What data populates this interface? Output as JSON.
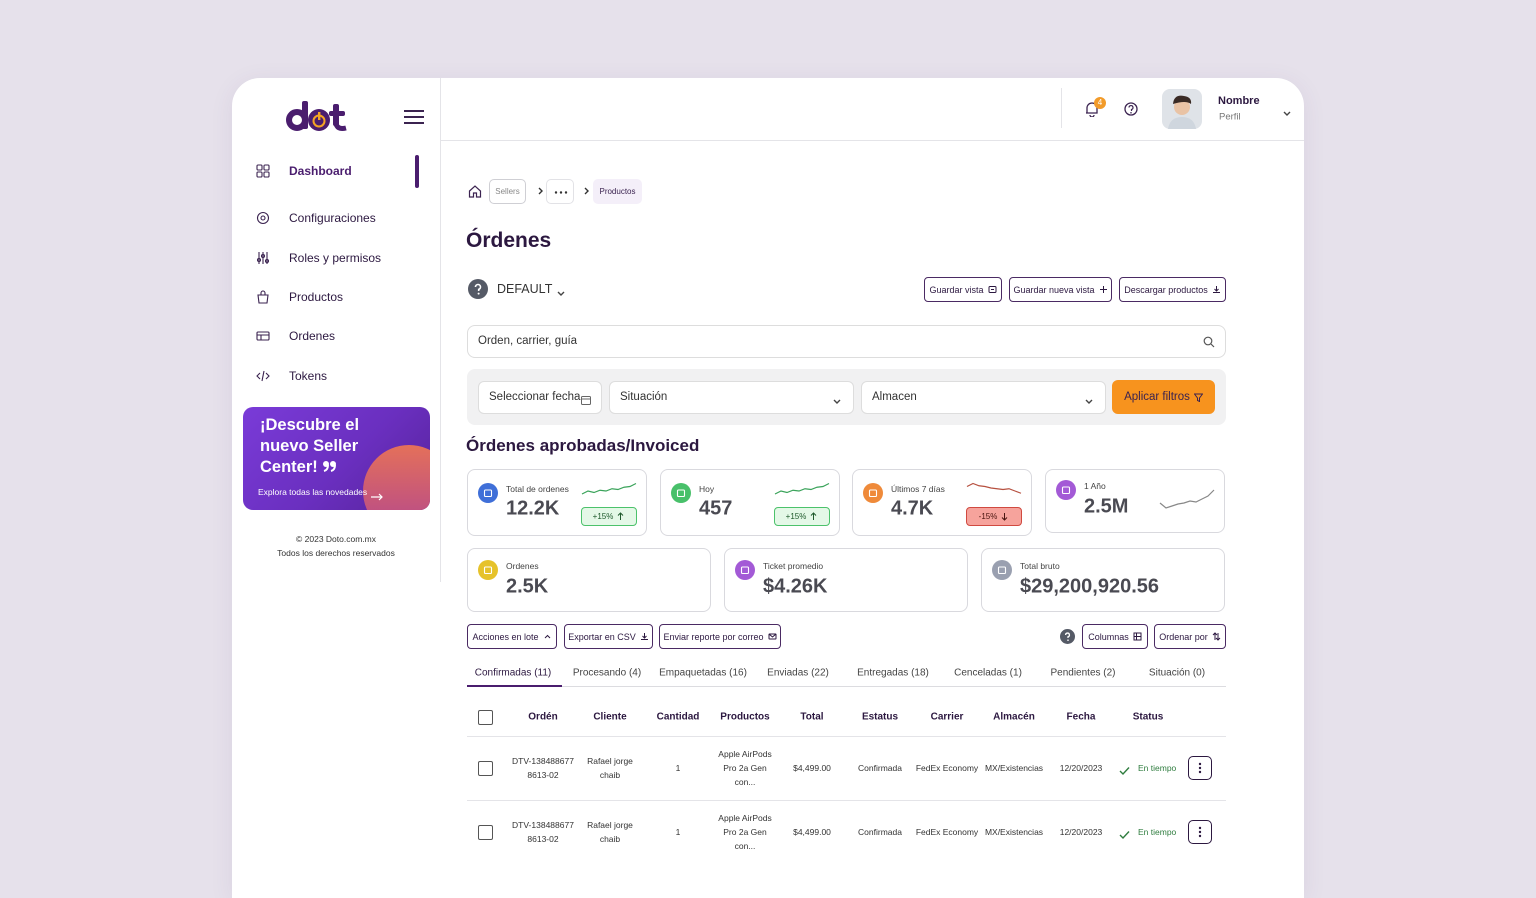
{
  "sidebar": {
    "nav": [
      "Dashboard",
      "Configuraciones",
      "Roles y permisos",
      "Productos",
      "Ordenes",
      "Tokens"
    ],
    "promo": {
      "title": "¡Descubre el nuevo Seller Center!",
      "link": "Explora todas las novedades"
    },
    "footer": [
      "© 2023 Doto.com.mx",
      "Todos los derechos reservados"
    ]
  },
  "header": {
    "notifications": 4,
    "user": {
      "name": "Nombre",
      "role": "Perfil"
    }
  },
  "breadcrumb": [
    "Sellers",
    "Productos"
  ],
  "page": {
    "title": "Órdenes",
    "view": "DEFAULT",
    "view_actions": [
      "Guardar vista",
      "Guardar nueva vista",
      "Descargar productos"
    ],
    "search_placeholder": "Orden, carrier, guía",
    "filters": [
      "Seleccionar fecha",
      "Situación",
      "Almacen"
    ],
    "apply_filters": "Aplicar filtros"
  },
  "summary": {
    "title": "Órdenes aprobadas/Invoiced",
    "stats": [
      {
        "label": "Total de ordenes",
        "value": "12.2K",
        "change": "+15%"
      },
      {
        "label": "Hoy",
        "value": "457",
        "change": "+15%"
      },
      {
        "label": "Últimos 7 días",
        "value": "4.7K",
        "change": "-15%"
      },
      {
        "label": "1 Año",
        "value": "2.5M"
      },
      {
        "label": "Ordenes",
        "value": "2.5K"
      },
      {
        "label": "Ticket promedio",
        "value": "$4.26K"
      },
      {
        "label": "Total bruto",
        "value": "$29,200,920.56"
      }
    ]
  },
  "table_actions": {
    "left": [
      "Acciones en lote",
      "Exportar en CSV",
      "Enviar reporte por correo"
    ],
    "right": [
      "Columnas",
      "Ordenar por"
    ]
  },
  "tabs": [
    "Confirmadas (11)",
    "Procesando (4)",
    "Empaquetadas (16)",
    "Enviadas (22)",
    "Entregadas (18)",
    "Cenceladas (1)",
    "Pendientes (2)",
    "Situación (0)"
  ],
  "table": {
    "columns": [
      "Ordén",
      "Cliente",
      "Cantidad",
      "Productos",
      "Total",
      "Estatus",
      "Carrier",
      "Almacén",
      "Fecha",
      "Status"
    ],
    "rows": [
      [
        "DTV-138488677 8613-02",
        "Rafael jorge chaib",
        "1",
        "Apple AirPods Pro 2a Gen con...",
        "$4,499.00",
        "Confirmada",
        "FedEx Economy",
        "MX/Existencias",
        "12/20/2023",
        "En tiempo"
      ],
      [
        "DTV-138488677 8613-02",
        "Rafael jorge chaib",
        "1",
        "Apple AirPods Pro 2a Gen con...",
        "$4,499.00",
        "Confirmada",
        "FedEx Economy",
        "MX/Existencias",
        "12/20/2023",
        "En tiempo"
      ]
    ]
  }
}
